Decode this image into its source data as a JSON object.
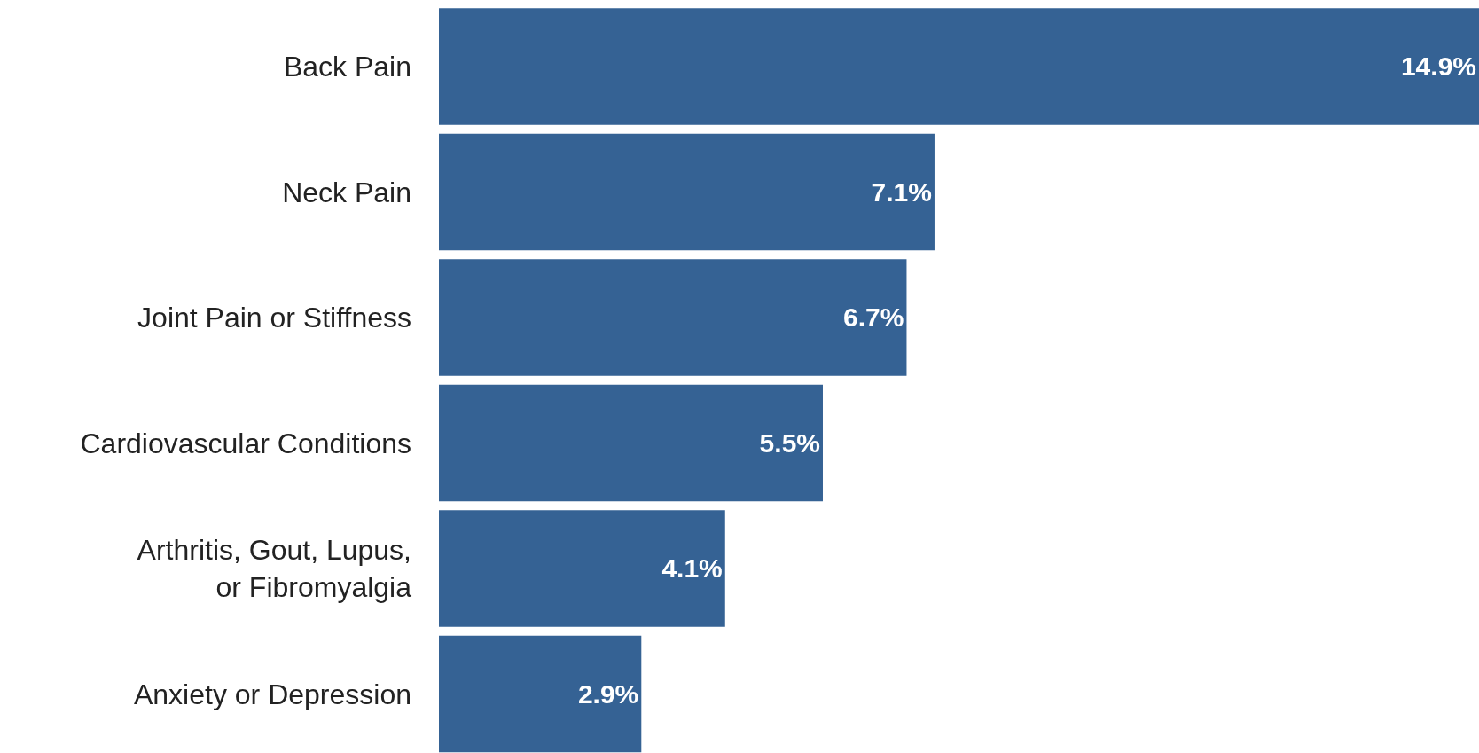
{
  "chart_data": {
    "type": "bar",
    "orientation": "horizontal",
    "categories": [
      "Back Pain",
      "Neck Pain",
      "Joint Pain or Stiffness",
      "Cardiovascular Conditions",
      "Arthritis, Gout, Lupus,\nor Fibromyalgia",
      "Anxiety or Depression"
    ],
    "values": [
      14.9,
      7.1,
      6.7,
      5.5,
      4.1,
      2.9
    ],
    "value_labels": [
      "14.9%",
      "7.1%",
      "6.7%",
      "5.5%",
      "4.1%",
      "2.9%"
    ],
    "color": "#356294"
  }
}
